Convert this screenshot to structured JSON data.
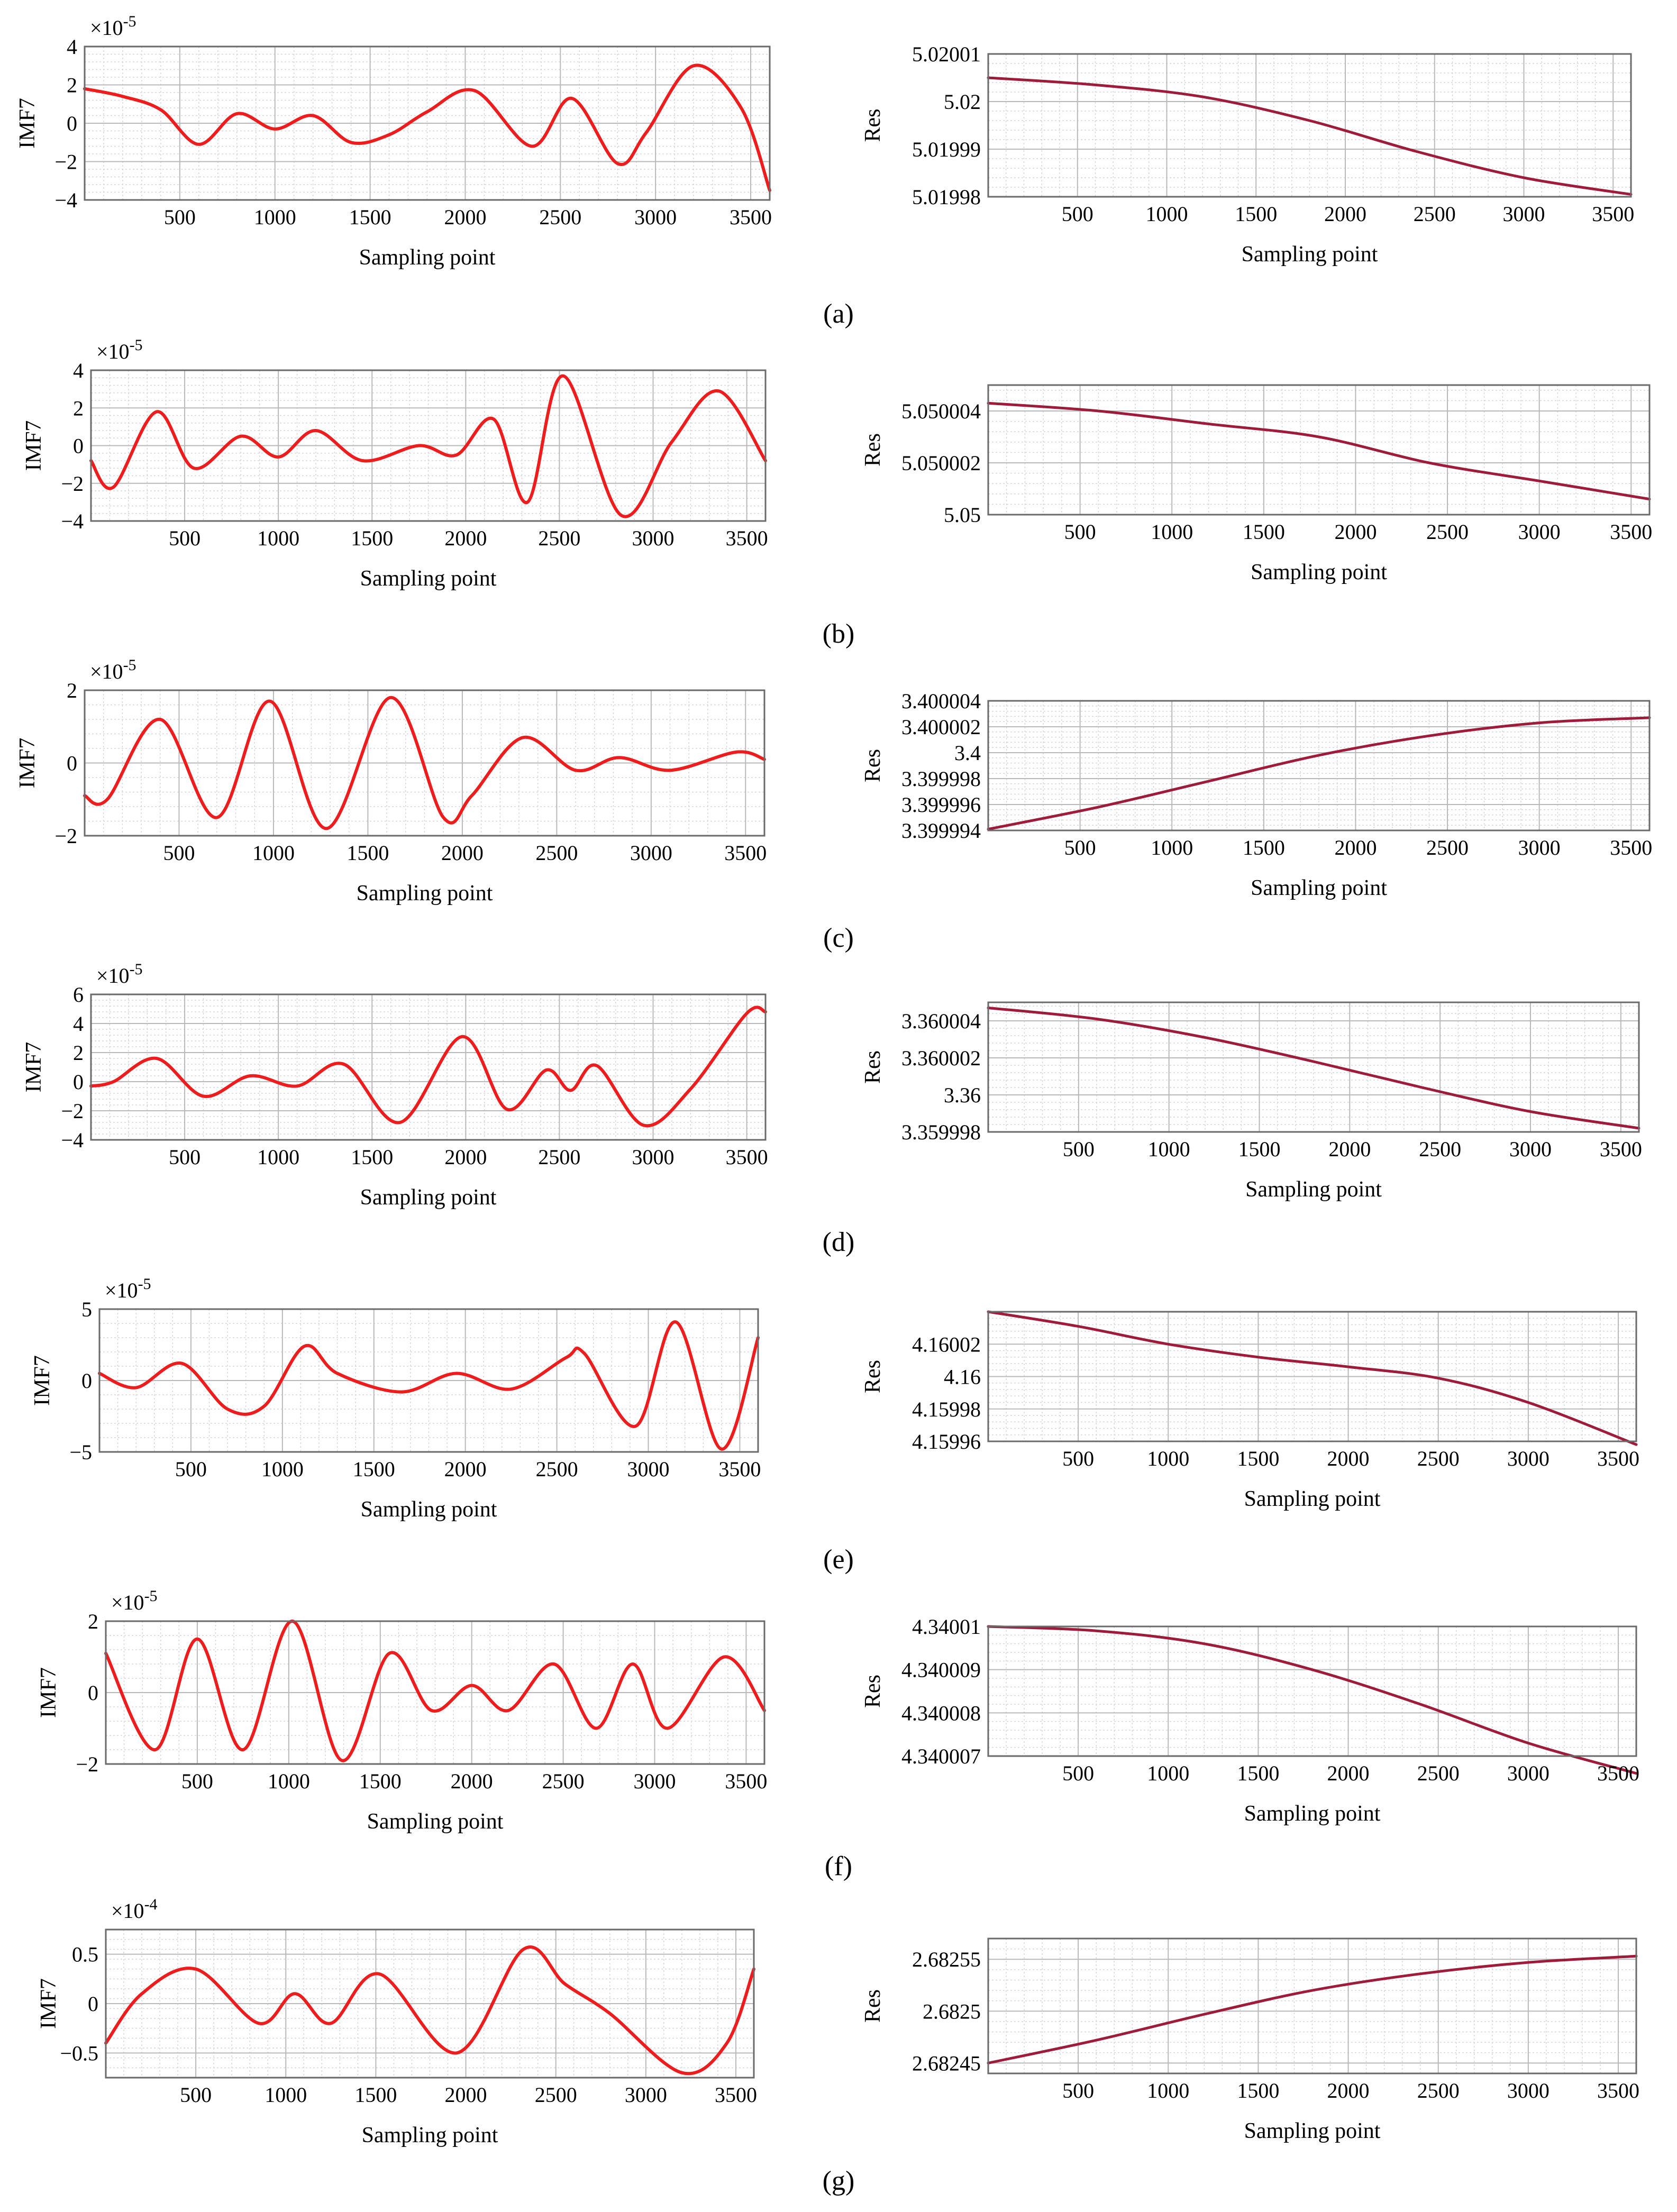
{
  "chart_data": [
    {
      "id": "a-imf",
      "panel": "a",
      "type": "line",
      "title": "",
      "xlabel": "Sampling point",
      "ylabel": "IMF7",
      "exponent_label": "×10-5",
      "xlim": [
        0,
        3600
      ],
      "ylim": [
        -4,
        4
      ],
      "xticks": [
        500,
        1000,
        1500,
        2000,
        2500,
        3000,
        3500
      ],
      "yticks": [
        -4,
        -2,
        0,
        2,
        4
      ],
      "ytick_labels": [
        "−4",
        "−2",
        "0",
        "2",
        "4"
      ],
      "grid": true,
      "color": "#ee1c1c",
      "x": [
        0,
        200,
        400,
        600,
        800,
        1000,
        1200,
        1400,
        1600,
        1800,
        2050,
        2350,
        2560,
        2800,
        2950,
        3200,
        3450,
        3600
      ],
      "y": [
        1.8,
        1.4,
        0.7,
        -1.1,
        0.5,
        -0.3,
        0.4,
        -1.0,
        -0.6,
        0.6,
        1.7,
        -1.2,
        1.3,
        -2.1,
        -0.5,
        3.0,
        0.8,
        -3.5
      ]
    },
    {
      "id": "a-res",
      "panel": "a",
      "type": "line",
      "xlabel": "Sampling point",
      "ylabel": "Res",
      "xlim": [
        0,
        3600
      ],
      "ylim": [
        5.01998,
        5.02001
      ],
      "xticks": [
        500,
        1000,
        1500,
        2000,
        2500,
        3000,
        3500
      ],
      "yticks": [
        5.01998,
        5.01999,
        5.02,
        5.02001
      ],
      "ytick_labels": [
        "5.01998",
        "5.01999",
        "5.02",
        "5.02001"
      ],
      "grid": true,
      "color": "#9e1b3a",
      "x": [
        0,
        600,
        1200,
        1800,
        2400,
        3000,
        3600
      ],
      "y": [
        5.020005,
        5.0200035,
        5.020001,
        5.019996,
        5.0199895,
        5.019984,
        5.0199805
      ]
    },
    {
      "id": "b-imf",
      "panel": "b",
      "type": "line",
      "xlabel": "Sampling point",
      "ylabel": "IMF7",
      "exponent_label": "×10-5",
      "xlim": [
        0,
        3600
      ],
      "ylim": [
        -4,
        4
      ],
      "xticks": [
        500,
        1000,
        1500,
        2000,
        2500,
        3000,
        3500
      ],
      "yticks": [
        -4,
        -2,
        0,
        2,
        4
      ],
      "ytick_labels": [
        "−4",
        "−2",
        "0",
        "2",
        "4"
      ],
      "grid": true,
      "color": "#ee1c1c",
      "x": [
        0,
        120,
        350,
        550,
        800,
        1000,
        1200,
        1450,
        1750,
        1950,
        2150,
        2330,
        2520,
        2830,
        3100,
        3350,
        3600
      ],
      "y": [
        -0.8,
        -2.2,
        1.8,
        -1.2,
        0.5,
        -0.6,
        0.8,
        -0.8,
        0.0,
        -0.5,
        1.4,
        -3.0,
        3.7,
        -3.7,
        0.2,
        2.9,
        -0.8
      ]
    },
    {
      "id": "b-res",
      "panel": "b",
      "type": "line",
      "xlabel": "Sampling point",
      "ylabel": "Res",
      "xlim": [
        0,
        3600
      ],
      "ylim": [
        5.05,
        5.050005
      ],
      "xticks": [
        500,
        1000,
        1500,
        2000,
        2500,
        3000,
        3500
      ],
      "yticks": [
        5.05,
        5.050002,
        5.050004
      ],
      "ytick_labels": [
        "5.05",
        "5.050002",
        "5.050004"
      ],
      "grid": true,
      "color": "#9e1b3a",
      "x": [
        0,
        600,
        1200,
        1800,
        2400,
        3000,
        3600
      ],
      "y": [
        5.0500043,
        5.050004,
        5.0500035,
        5.050003,
        5.050002,
        5.0500013,
        5.0500006
      ]
    },
    {
      "id": "c-imf",
      "panel": "c",
      "type": "line",
      "xlabel": "Sampling point",
      "ylabel": "IMF7",
      "exponent_label": "×10-5",
      "xlim": [
        0,
        3600
      ],
      "ylim": [
        -2,
        2
      ],
      "xticks": [
        500,
        1000,
        1500,
        2000,
        2500,
        3000,
        3500
      ],
      "yticks": [
        -2,
        0,
        2
      ],
      "ytick_labels": [
        "−2",
        "0",
        "2"
      ],
      "grid": true,
      "color": "#ee1c1c",
      "x": [
        0,
        120,
        400,
        700,
        980,
        1280,
        1620,
        1900,
        2050,
        2320,
        2600,
        2830,
        3100,
        3450,
        3600
      ],
      "y": [
        -0.9,
        -1.0,
        1.2,
        -1.5,
        1.7,
        -1.8,
        1.8,
        -1.5,
        -0.9,
        0.7,
        -0.2,
        0.15,
        -0.2,
        0.3,
        0.1
      ]
    },
    {
      "id": "c-res",
      "panel": "c",
      "type": "line",
      "xlabel": "Sampling point",
      "ylabel": "Res",
      "xlim": [
        0,
        3600
      ],
      "ylim": [
        3.399994,
        3.400004
      ],
      "xticks": [
        500,
        1000,
        1500,
        2000,
        2500,
        3000,
        3500
      ],
      "yticks": [
        3.399994,
        3.399996,
        3.399998,
        3.4,
        3.400002,
        3.400004
      ],
      "ytick_labels": [
        "3.399994",
        "3.399996",
        "3.399998",
        "3.4",
        "3.400002",
        "3.400004"
      ],
      "grid": true,
      "color": "#9e1b3a",
      "x": [
        0,
        600,
        1200,
        1800,
        2400,
        3000,
        3600
      ],
      "y": [
        3.3999941,
        3.3999958,
        3.3999978,
        3.3999998,
        3.4000013,
        3.4000023,
        3.4000027
      ]
    },
    {
      "id": "d-imf",
      "panel": "d",
      "type": "line",
      "xlabel": "Sampling point",
      "ylabel": "IMF7",
      "exponent_label": "×10-5",
      "xlim": [
        0,
        3600
      ],
      "ylim": [
        -4,
        6
      ],
      "xticks": [
        500,
        1000,
        1500,
        2000,
        2500,
        3000,
        3500
      ],
      "yticks": [
        -4,
        -2,
        0,
        2,
        4,
        6
      ],
      "ytick_labels": [
        "−4",
        "−2",
        "0",
        "2",
        "4",
        "6"
      ],
      "grid": true,
      "color": "#ee1c1c",
      "x": [
        0,
        120,
        350,
        600,
        850,
        1100,
        1350,
        1650,
        1980,
        2220,
        2430,
        2560,
        2700,
        2950,
        3200,
        3500,
        3600
      ],
      "y": [
        -0.3,
        0.0,
        1.6,
        -1.0,
        0.4,
        -0.3,
        1.2,
        -2.8,
        3.1,
        -1.9,
        0.8,
        -0.6,
        1.1,
        -3.0,
        -0.5,
        4.7,
        4.8
      ]
    },
    {
      "id": "d-res",
      "panel": "d",
      "type": "line",
      "xlabel": "Sampling point",
      "ylabel": "Res",
      "xlim": [
        0,
        3600
      ],
      "ylim": [
        3.359998,
        3.360005
      ],
      "xticks": [
        500,
        1000,
        1500,
        2000,
        2500,
        3000,
        3500
      ],
      "yticks": [
        3.359998,
        3.36,
        3.360002,
        3.360004
      ],
      "ytick_labels": [
        "3.359998",
        "3.36",
        "3.360002",
        "3.360004"
      ],
      "grid": true,
      "color": "#9e1b3a",
      "x": [
        0,
        600,
        1200,
        1800,
        2400,
        3000,
        3600
      ],
      "y": [
        3.3600047,
        3.3600041,
        3.3600031,
        3.3600018,
        3.3600004,
        3.3599991,
        3.3599982
      ]
    },
    {
      "id": "e-imf",
      "panel": "e",
      "type": "line",
      "xlabel": "Sampling point",
      "ylabel": "IMF7",
      "exponent_label": "×10-5",
      "xlim": [
        0,
        3600
      ],
      "ylim": [
        -5,
        5
      ],
      "xticks": [
        500,
        1000,
        1500,
        2000,
        2500,
        3000,
        3500
      ],
      "yticks": [
        -5,
        0,
        5
      ],
      "ytick_labels": [
        "−5",
        "0",
        "5"
      ],
      "grid": true,
      "color": "#ee1c1c",
      "x": [
        0,
        200,
        450,
        700,
        900,
        1120,
        1300,
        1650,
        1950,
        2250,
        2550,
        2650,
        2930,
        3150,
        3400,
        3600
      ],
      "y": [
        0.5,
        -0.5,
        1.2,
        -2.0,
        -1.8,
        2.4,
        0.5,
        -0.8,
        0.5,
        -0.6,
        1.6,
        1.9,
        -3.2,
        4.1,
        -4.8,
        3.0
      ]
    },
    {
      "id": "e-res",
      "panel": "e",
      "type": "line",
      "xlabel": "Sampling point",
      "ylabel": "Res",
      "xlim": [
        0,
        3600
      ],
      "ylim": [
        4.15996,
        4.16004
      ],
      "xticks": [
        500,
        1000,
        1500,
        2000,
        2500,
        3000,
        3500
      ],
      "yticks": [
        4.15996,
        4.15998,
        4.16,
        4.16002
      ],
      "ytick_labels": [
        "4.15996",
        "4.15998",
        "4.16",
        "4.16002"
      ],
      "grid": true,
      "color": "#9e1b3a",
      "x": [
        0,
        500,
        1000,
        1500,
        2000,
        2500,
        3000,
        3600
      ],
      "y": [
        4.16004,
        4.160031,
        4.16002,
        4.160012,
        4.160006,
        4.159999,
        4.159984,
        4.159958
      ]
    },
    {
      "id": "f-imf",
      "panel": "f",
      "type": "line",
      "xlabel": "Sampling point",
      "ylabel": "IMF7",
      "exponent_label": "×10-5",
      "xlim": [
        0,
        3600
      ],
      "ylim": [
        -2,
        2
      ],
      "xticks": [
        500,
        1000,
        1500,
        2000,
        2500,
        3000,
        3500
      ],
      "yticks": [
        -2,
        0,
        2
      ],
      "ytick_labels": [
        "−2",
        "0",
        "2"
      ],
      "grid": true,
      "color": "#ee1c1c",
      "x": [
        0,
        270,
        500,
        750,
        1020,
        1290,
        1550,
        1780,
        2000,
        2200,
        2450,
        2680,
        2880,
        3070,
        3380,
        3600
      ],
      "y": [
        1.1,
        -1.6,
        1.5,
        -1.6,
        2.0,
        -1.9,
        1.1,
        -0.5,
        0.2,
        -0.5,
        0.8,
        -1.0,
        0.8,
        -1.0,
        1.0,
        -0.5
      ]
    },
    {
      "id": "f-res",
      "panel": "f",
      "type": "line",
      "xlabel": "Sampling point",
      "ylabel": "Res",
      "xlim": [
        0,
        3600
      ],
      "ylim": [
        4.340007,
        4.34001
      ],
      "xticks": [
        500,
        1000,
        1500,
        2000,
        2500,
        3000,
        3500
      ],
      "yticks": [
        4.340007,
        4.340008,
        4.340009,
        4.34001
      ],
      "ytick_labels": [
        "4.340007",
        "4.340008",
        "4.340009",
        "4.34001"
      ],
      "grid": true,
      "color": "#9e1b3a",
      "x": [
        0,
        600,
        1200,
        1800,
        2400,
        3000,
        3600
      ],
      "y": [
        4.34001,
        4.3400099,
        4.3400096,
        4.340009,
        4.3400082,
        4.3400073,
        4.3400066
      ]
    },
    {
      "id": "g-imf",
      "panel": "g",
      "type": "line",
      "xlabel": "Sampling point",
      "ylabel": "IMF7",
      "exponent_label": "×10-4",
      "xlim": [
        0,
        3600
      ],
      "ylim": [
        -0.75,
        0.75
      ],
      "xticks": [
        500,
        1000,
        1500,
        2000,
        2500,
        3000,
        3500
      ],
      "yticks": [
        -0.5,
        0,
        0.5
      ],
      "ytick_labels": [
        "−0.5",
        "0",
        "0.5"
      ],
      "grid": true,
      "color": "#ee1c1c",
      "x": [
        0,
        200,
        500,
        850,
        1050,
        1250,
        1520,
        1950,
        2320,
        2550,
        2800,
        3200,
        3450,
        3600
      ],
      "y": [
        -0.4,
        0.1,
        0.35,
        -0.2,
        0.1,
        -0.2,
        0.3,
        -0.5,
        0.55,
        0.2,
        -0.1,
        -0.7,
        -0.4,
        0.35
      ]
    },
    {
      "id": "g-res",
      "panel": "g",
      "type": "line",
      "xlabel": "Sampling point",
      "ylabel": "Res",
      "xlim": [
        0,
        3600
      ],
      "ylim": [
        2.68244,
        2.68257
      ],
      "xticks": [
        500,
        1000,
        1500,
        2000,
        2500,
        3000,
        3500
      ],
      "yticks": [
        2.68245,
        2.6825,
        2.68255
      ],
      "ytick_labels": [
        "2.68245",
        "2.6825",
        "2.68255"
      ],
      "grid": true,
      "color": "#9e1b3a",
      "x": [
        0,
        600,
        1200,
        1800,
        2400,
        3000,
        3600
      ],
      "y": [
        2.68245,
        2.682472,
        2.682497,
        2.68252,
        2.682536,
        2.682547,
        2.682553
      ]
    }
  ],
  "panel_labels": {
    "a": "(a)",
    "b": "(b)",
    "c": "(c)",
    "d": "(d)",
    "e": "(e)",
    "f": "(f)",
    "g": "(g)"
  }
}
